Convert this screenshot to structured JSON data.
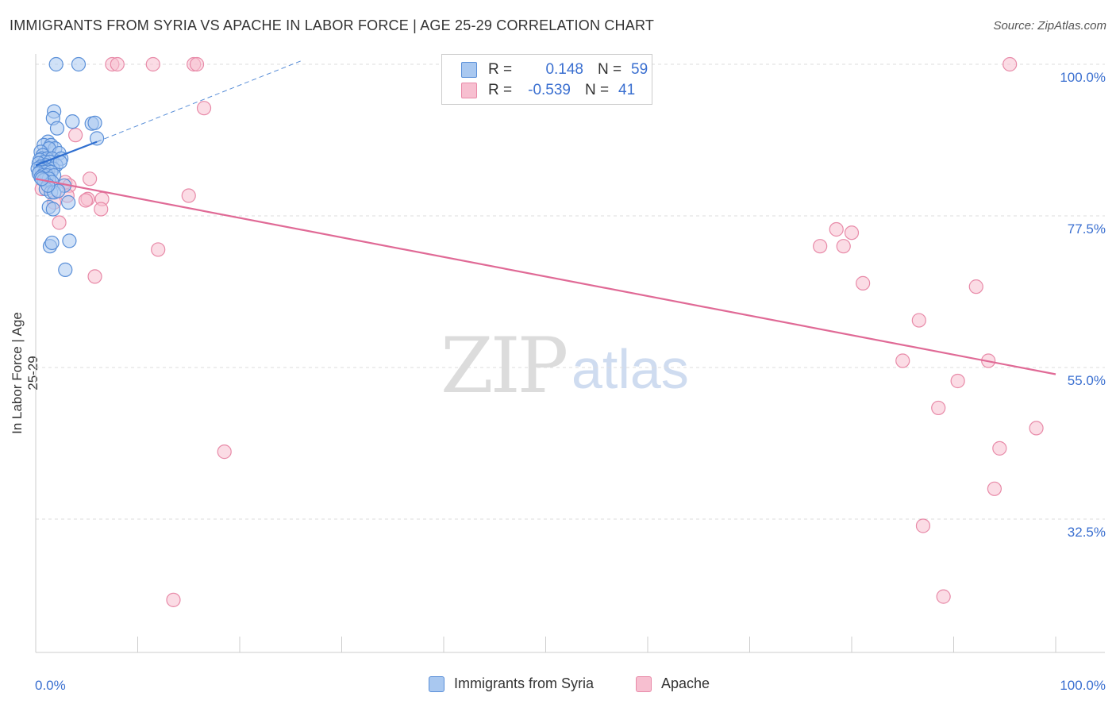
{
  "title": "IMMIGRANTS FROM SYRIA VS APACHE IN LABOR FORCE | AGE 25-29 CORRELATION CHART",
  "source": "Source: ZipAtlas.com",
  "watermark": {
    "zip": "ZIP",
    "atlas": "atlas"
  },
  "legend_top": {
    "series1": {
      "r_label": "R =",
      "r_value": "0.148",
      "n_label": "N =",
      "n_value": "59"
    },
    "series2": {
      "r_label": "R =",
      "r_value": "-0.539",
      "n_label": "N =",
      "n_value": "41"
    }
  },
  "legend_bottom": {
    "series1": "Immigrants from Syria",
    "series2": "Apache"
  },
  "colors": {
    "blue_fill": "#a9c8f0",
    "blue_stroke": "#5a8fd8",
    "blue_line": "#2f6fd0",
    "pink_fill": "#f7bfd0",
    "pink_stroke": "#e88aa8",
    "pink_line": "#e06a96",
    "tick_text": "#3a6fd0"
  },
  "chart_data": {
    "type": "scatter",
    "title": "IMMIGRANTS FROM SYRIA VS APACHE IN LABOR FORCE | AGE 25-29 CORRELATION CHART",
    "xlabel": "",
    "ylabel": "In Labor Force | Age 25-29",
    "xlim": [
      0,
      100
    ],
    "ylim": [
      10,
      102
    ],
    "x_tick_labels": [
      "0.0%",
      "100.0%"
    ],
    "y_ticks": [
      100,
      77.5,
      55,
      32.5
    ],
    "y_tick_labels": [
      "100.0%",
      "77.5%",
      "55.0%",
      "32.5%"
    ],
    "grid": "horizontal dashed",
    "legend": "top-center",
    "series": [
      {
        "name": "Immigrants from Syria",
        "r": 0.148,
        "n": 59,
        "trend": {
          "x": [
            0,
            6
          ],
          "y": [
            85,
            88.5
          ],
          "dashed_extension": {
            "x": [
              6,
              26
            ],
            "y": [
              88.5,
              100.5
            ]
          }
        },
        "points": [
          [
            2,
            100
          ],
          [
            4.2,
            100
          ],
          [
            1.8,
            93
          ],
          [
            1.7,
            92
          ],
          [
            3.6,
            91.5
          ],
          [
            5.5,
            91.2
          ],
          [
            5.8,
            91.3
          ],
          [
            2.1,
            90.5
          ],
          [
            6,
            89
          ],
          [
            1.2,
            88.5
          ],
          [
            0.8,
            88
          ],
          [
            1.5,
            88
          ],
          [
            1.9,
            87.5
          ],
          [
            1.3,
            87.5
          ],
          [
            0.5,
            87
          ],
          [
            2.3,
            86.8
          ],
          [
            0.7,
            86.5
          ],
          [
            0.6,
            86
          ],
          [
            1.1,
            86
          ],
          [
            1.6,
            86
          ],
          [
            2.5,
            86
          ],
          [
            0.4,
            85.8
          ],
          [
            0.9,
            85.5
          ],
          [
            1.4,
            85.5
          ],
          [
            0.3,
            85.3
          ],
          [
            1,
            85
          ],
          [
            2,
            85
          ],
          [
            0.5,
            84.8
          ],
          [
            0.8,
            84.6
          ],
          [
            1.7,
            84.5
          ],
          [
            0.2,
            84.5
          ],
          [
            0.6,
            84.3
          ],
          [
            1.2,
            84.2
          ],
          [
            0.4,
            84
          ],
          [
            0.9,
            84
          ],
          [
            1.5,
            84
          ],
          [
            0.3,
            83.8
          ],
          [
            0.7,
            83.5
          ],
          [
            1.1,
            83.5
          ],
          [
            1.8,
            83.5
          ],
          [
            0.5,
            83.2
          ],
          [
            1.3,
            83
          ],
          [
            0.8,
            82.8
          ],
          [
            1.6,
            82.5
          ],
          [
            2.8,
            82
          ],
          [
            1,
            81.5
          ],
          [
            1.5,
            81
          ],
          [
            1.8,
            81
          ],
          [
            2.2,
            81.2
          ],
          [
            3.2,
            79.5
          ],
          [
            1.3,
            78.8
          ],
          [
            1.7,
            78.5
          ],
          [
            1.4,
            73
          ],
          [
            1.6,
            73.5
          ],
          [
            3.3,
            73.8
          ],
          [
            2.9,
            69.5
          ],
          [
            1.2,
            82
          ],
          [
            0.6,
            83
          ],
          [
            2.4,
            85.5
          ]
        ]
      },
      {
        "name": "Apache",
        "r": -0.539,
        "n": 41,
        "trend": {
          "x": [
            0,
            100
          ],
          "y": [
            83,
            54
          ]
        },
        "points": [
          [
            7.5,
            100
          ],
          [
            8,
            100
          ],
          [
            11.5,
            100
          ],
          [
            15.5,
            100
          ],
          [
            15.8,
            100
          ],
          [
            95.5,
            100
          ],
          [
            16.5,
            93.5
          ],
          [
            3.9,
            89.5
          ],
          [
            5.3,
            83
          ],
          [
            2.9,
            82.5
          ],
          [
            3.3,
            82
          ],
          [
            0.6,
            81.5
          ],
          [
            3.1,
            80.5
          ],
          [
            6.5,
            80
          ],
          [
            5.1,
            80
          ],
          [
            4.9,
            79.8
          ],
          [
            15,
            80.5
          ],
          [
            1.8,
            79.5
          ],
          [
            6.4,
            78.5
          ],
          [
            2.3,
            76.5
          ],
          [
            12,
            72.5
          ],
          [
            5.8,
            68.5
          ],
          [
            76.9,
            73
          ],
          [
            78.5,
            75.5
          ],
          [
            79.2,
            73
          ],
          [
            80,
            75
          ],
          [
            81.1,
            67.5
          ],
          [
            92.2,
            67
          ],
          [
            86.6,
            62
          ],
          [
            85,
            56
          ],
          [
            93.4,
            56
          ],
          [
            90.4,
            53
          ],
          [
            88.5,
            49
          ],
          [
            98.1,
            46
          ],
          [
            94.5,
            43
          ],
          [
            94,
            37
          ],
          [
            18.5,
            42.5
          ],
          [
            87,
            31.5
          ],
          [
            89,
            21
          ],
          [
            13.5,
            20.5
          ],
          [
            1.2,
            83.5
          ]
        ]
      }
    ]
  }
}
